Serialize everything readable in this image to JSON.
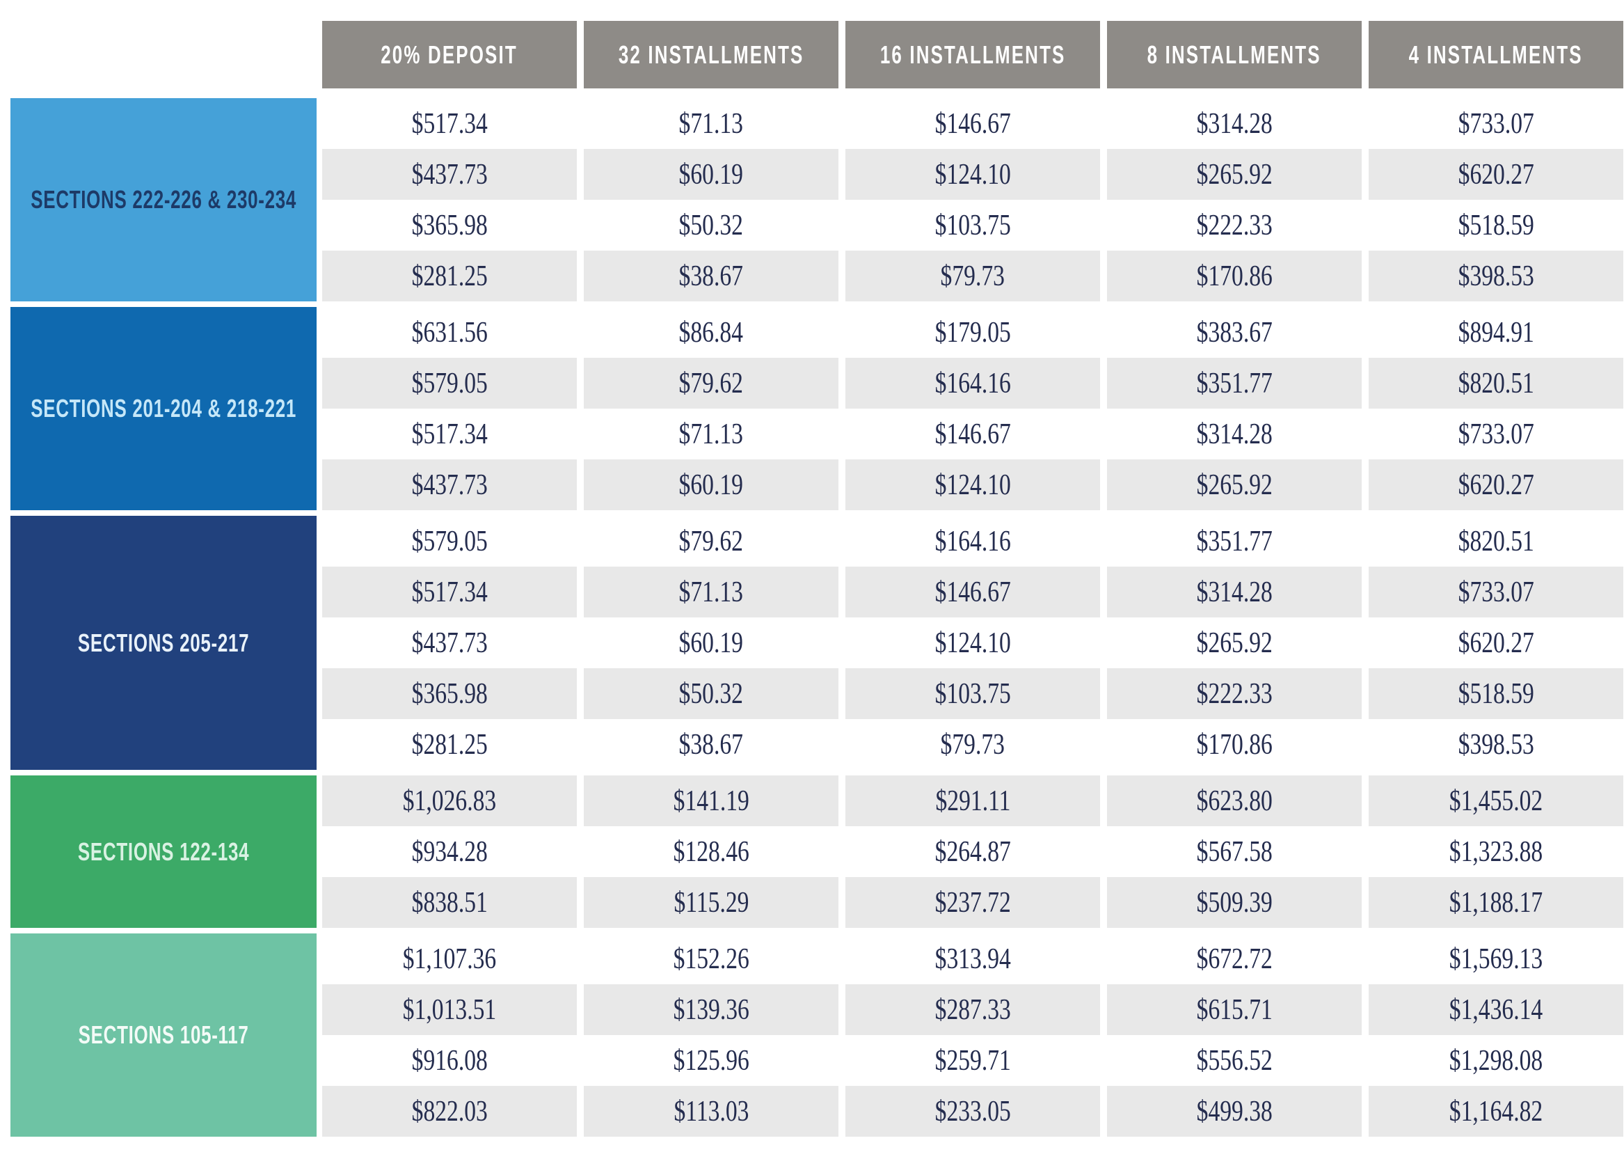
{
  "colors": {
    "page_bg": "#ffffff",
    "header_bg": "#8e8b87",
    "header_text": "#ffffff",
    "row_alt_bg": "#e8e8e8",
    "value_text": "#242c4e"
  },
  "chart_data": {
    "type": "table",
    "columns": [
      "20% DEPOSIT",
      "32 INSTALLMENTS",
      "16 INSTALLMENTS",
      "8 INSTALLMENTS",
      "4 INSTALLMENTS"
    ],
    "groups": [
      {
        "label": "SECTIONS 222-226 & 230-234",
        "bg": "#45a1d8",
        "text_color": "#1d3a67",
        "rows": [
          [
            "$517.34",
            "$71.13",
            "$146.67",
            "$314.28",
            "$733.07"
          ],
          [
            "$437.73",
            "$60.19",
            "$124.10",
            "$265.92",
            "$620.27"
          ],
          [
            "$365.98",
            "$50.32",
            "$103.75",
            "$222.33",
            "$518.59"
          ],
          [
            "$281.25",
            "$38.67",
            "$79.73",
            "$170.86",
            "$398.53"
          ]
        ]
      },
      {
        "label": "SECTIONS 201-204 & 218-221",
        "bg": "#0f69af",
        "text_color": "#c5e7f8",
        "rows": [
          [
            "$631.56",
            "$86.84",
            "$179.05",
            "$383.67",
            "$894.91"
          ],
          [
            "$579.05",
            "$79.62",
            "$164.16",
            "$351.77",
            "$820.51"
          ],
          [
            "$517.34",
            "$71.13",
            "$146.67",
            "$314.28",
            "$733.07"
          ],
          [
            "$437.73",
            "$60.19",
            "$124.10",
            "$265.92",
            "$620.27"
          ]
        ]
      },
      {
        "label": "SECTIONS 205-217",
        "bg": "#21417d",
        "text_color": "#e9f2fa",
        "rows": [
          [
            "$579.05",
            "$79.62",
            "$164.16",
            "$351.77",
            "$820.51"
          ],
          [
            "$517.34",
            "$71.13",
            "$146.67",
            "$314.28",
            "$733.07"
          ],
          [
            "$437.73",
            "$60.19",
            "$124.10",
            "$265.92",
            "$620.27"
          ],
          [
            "$365.98",
            "$50.32",
            "$103.75",
            "$222.33",
            "$518.59"
          ],
          [
            "$281.25",
            "$38.67",
            "$79.73",
            "$170.86",
            "$398.53"
          ]
        ]
      },
      {
        "label": "SECTIONS 122-134",
        "bg": "#3caa67",
        "text_color": "#d9f2e3",
        "rows": [
          [
            "$1,026.83",
            "$141.19",
            "$291.11",
            "$623.80",
            "$1,455.02"
          ],
          [
            "$934.28",
            "$128.46",
            "$264.87",
            "$567.58",
            "$1,323.88"
          ],
          [
            "$838.51",
            "$115.29",
            "$237.72",
            "$509.39",
            "$1,188.17"
          ]
        ]
      },
      {
        "label": "SECTIONS 105-117",
        "bg": "#6ec3a4",
        "text_color": "#f3fbf7",
        "rows": [
          [
            "$1,107.36",
            "$152.26",
            "$313.94",
            "$672.72",
            "$1,569.13"
          ],
          [
            "$1,013.51",
            "$139.36",
            "$287.33",
            "$615.71",
            "$1,436.14"
          ],
          [
            "$916.08",
            "$125.96",
            "$259.71",
            "$556.52",
            "$1,298.08"
          ],
          [
            "$822.03",
            "$113.03",
            "$233.05",
            "$499.38",
            "$1,164.82"
          ]
        ]
      }
    ]
  }
}
